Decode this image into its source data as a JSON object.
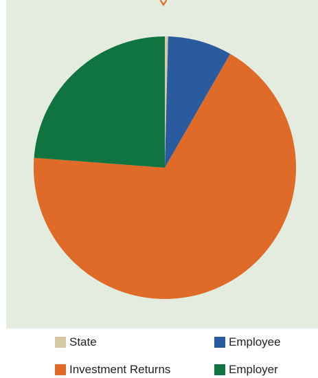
{
  "chart_data": {
    "type": "pie",
    "title": "",
    "start_angle_deg": 0,
    "direction": "clockwise",
    "slices": [
      {
        "label": "State",
        "value": 0.4,
        "color": "#d4c9a3"
      },
      {
        "label": "Employee",
        "value": 7.9,
        "color": "#2a5b9e"
      },
      {
        "label": "Investment Returns",
        "value": 67.9,
        "color": "#e06b28"
      },
      {
        "label": "Employer",
        "value": 23.8,
        "color": "#0f7440"
      }
    ],
    "legend": {
      "placement": "bottom",
      "entries": [
        {
          "label": "State",
          "color": "#d4c9a3"
        },
        {
          "label": "Employee",
          "color": "#2a5b9e"
        },
        {
          "label": "Investment Returns",
          "color": "#e06b28"
        },
        {
          "label": "Employer",
          "color": "#0f7440"
        }
      ]
    }
  },
  "colors": {
    "panel_background": "#e3ecdf",
    "top_marker": "#e06b28"
  }
}
